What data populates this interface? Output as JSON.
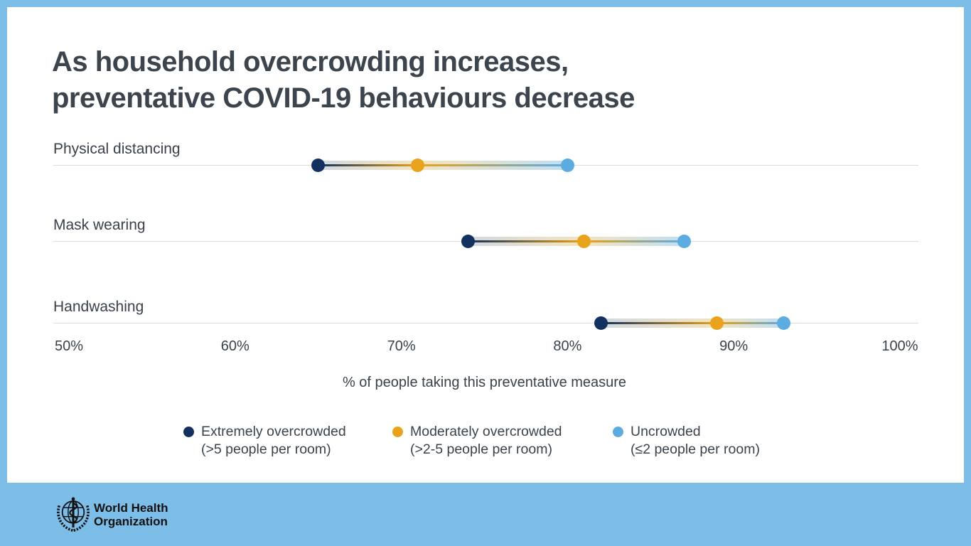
{
  "header": {
    "line1": "As household overcrowding increases,",
    "line2": "preventative COVID-19 behaviours decrease"
  },
  "chart_data": {
    "type": "dumbbell-dot-plot",
    "title": "As household overcrowding increases, preventative COVID-19 behaviours decrease",
    "categories": [
      "Physical distancing",
      "Mask wearing",
      "Handwashing"
    ],
    "series": [
      {
        "name": "Extremely overcrowded (>5 people per room)",
        "color": "#13315F",
        "values": [
          65,
          74,
          82
        ]
      },
      {
        "name": "Moderately overcrowded (>2-5 people per room)",
        "color": "#E9A21B",
        "values": [
          71,
          81,
          89
        ]
      },
      {
        "name": "Uncrowded (≤2 people per room)",
        "color": "#5CACE2",
        "values": [
          80,
          87,
          93
        ]
      }
    ],
    "xlabel": "% of people taking this preventative measure",
    "x_ticks": [
      "50%",
      "60%",
      "70%",
      "80%",
      "90%",
      "100%"
    ],
    "xlim": [
      50,
      100
    ],
    "grid": "horizontal hairline per category row",
    "legend_position": "bottom"
  },
  "legend": {
    "items": [
      {
        "label": "Extremely overcrowded",
        "sub": "(>5 people per room)",
        "color": "#13315F"
      },
      {
        "label": "Moderately overcrowded",
        "sub": "(>2-5 people per room)",
        "color": "#E9A21B"
      },
      {
        "label": "Uncrowded",
        "sub": "(≤2 people per room)",
        "color": "#5CACE2"
      }
    ]
  },
  "footer": {
    "org_line1": "World Health",
    "org_line2": "Organization"
  },
  "colors": {
    "frame_blue": "#7DBEE9",
    "card_white": "#FFFFFF",
    "title_text": "#3C454D",
    "body_text": "#39424B",
    "hairline": "#DCDCDC",
    "navy": "#13315F",
    "orange": "#E9A21B",
    "light_blue": "#5CACE2",
    "band_navy_tint": "#D2D8DF",
    "band_orange_tint": "#F2E4C0",
    "band_blue_tint": "#C2DDF2"
  }
}
